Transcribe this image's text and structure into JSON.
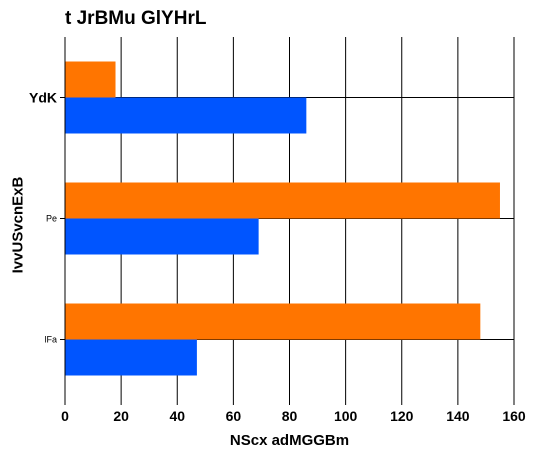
{
  "chart_data": {
    "type": "bar",
    "orientation": "horizontal",
    "title": "t JrBMu GlYHrL",
    "xlabel": "NScx adMGGBm",
    "ylabel": "IvvUSvcnExB",
    "categories": [
      "YdK",
      "Pe",
      "lFa"
    ],
    "series": [
      {
        "color": "#ff7500",
        "values": [
          18,
          155,
          148
        ]
      },
      {
        "color": "#0055ff",
        "values": [
          86,
          69,
          47
        ]
      }
    ],
    "xlim": [
      0,
      160
    ],
    "xticks": [
      0,
      20,
      40,
      60,
      80,
      100,
      120,
      140,
      160
    ],
    "grid": true
  }
}
